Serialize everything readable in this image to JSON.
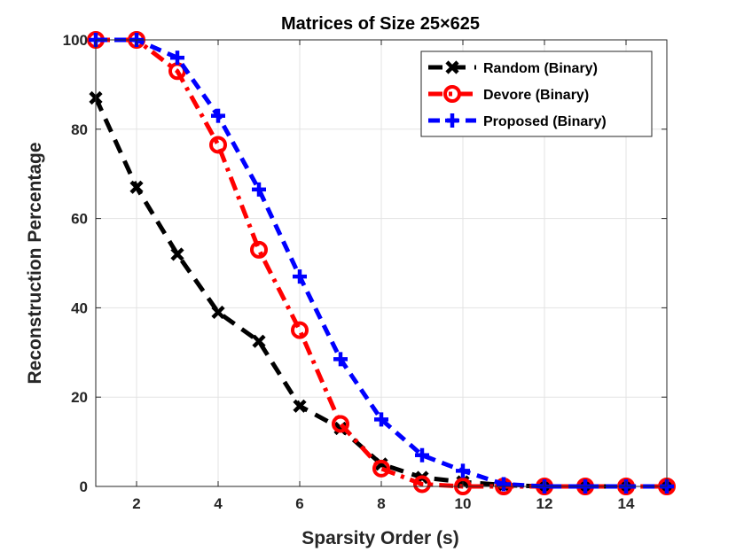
{
  "chart_data": {
    "type": "line",
    "title": "Matrices of Size 25×625",
    "xlabel": "Sparsity Order (s)",
    "ylabel": "Reconstruction Percentage",
    "xlim": [
      1,
      15
    ],
    "ylim": [
      0,
      100
    ],
    "xticks": [
      2,
      4,
      6,
      8,
      10,
      12,
      14
    ],
    "yticks": [
      0,
      20,
      40,
      60,
      80,
      100
    ],
    "grid": true,
    "legend_position": "top-right",
    "x": [
      1,
      2,
      3,
      4,
      5,
      6,
      7,
      8,
      9,
      10,
      11,
      12,
      13,
      14,
      15
    ],
    "series": [
      {
        "name": "Random (Binary)",
        "color": "#000000",
        "marker": "x-bold",
        "dash": "long-dash",
        "values": [
          87,
          67,
          52,
          39,
          32.5,
          18,
          13,
          5,
          2,
          1,
          0.3,
          0,
          0,
          0,
          0
        ]
      },
      {
        "name": "Devore (Binary)",
        "color": "#ff0000",
        "marker": "circle",
        "dash": "dash-dot",
        "values": [
          100,
          100,
          93,
          76.5,
          53,
          35,
          14,
          4,
          0.5,
          0,
          0,
          0,
          0,
          0,
          0
        ]
      },
      {
        "name": "Proposed (Binary)",
        "color": "#0000ff",
        "marker": "plus",
        "dash": "dash",
        "values": [
          100,
          100,
          96,
          83,
          66.5,
          47,
          28.5,
          15,
          7,
          3.5,
          0.5,
          0,
          0,
          0,
          0
        ]
      }
    ]
  }
}
